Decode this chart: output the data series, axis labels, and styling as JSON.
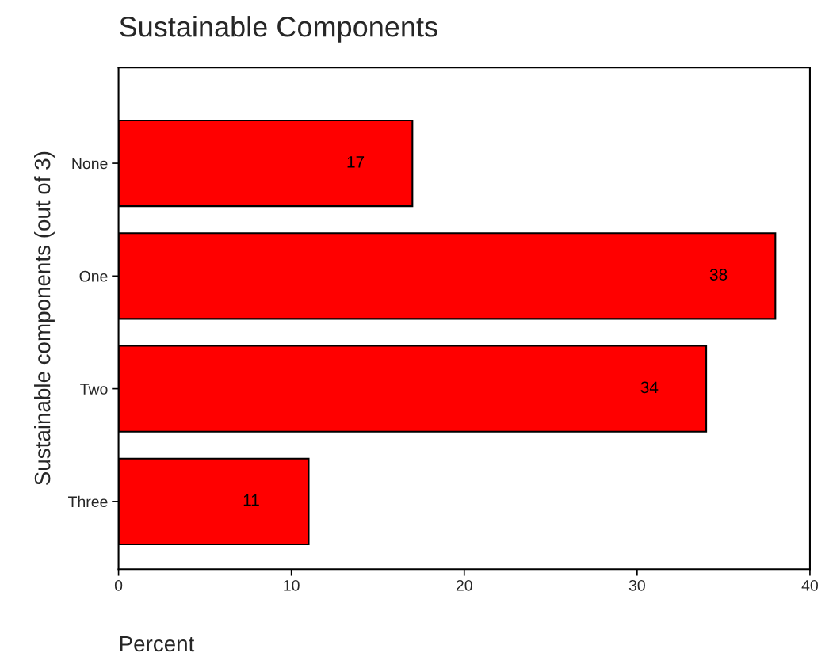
{
  "chart_data": {
    "type": "bar",
    "orientation": "horizontal",
    "title": "Sustainable Components",
    "xlabel": "Percent",
    "ylabel": "Sustainable components (out of 3)",
    "categories": [
      "None",
      "One",
      "Two",
      "Three"
    ],
    "values": [
      17,
      38,
      34,
      11
    ],
    "color": "#ff0000",
    "xlim": [
      0,
      40
    ],
    "xticks": [
      0,
      10,
      20,
      30,
      40
    ],
    "grid": false,
    "data_labels": true
  }
}
